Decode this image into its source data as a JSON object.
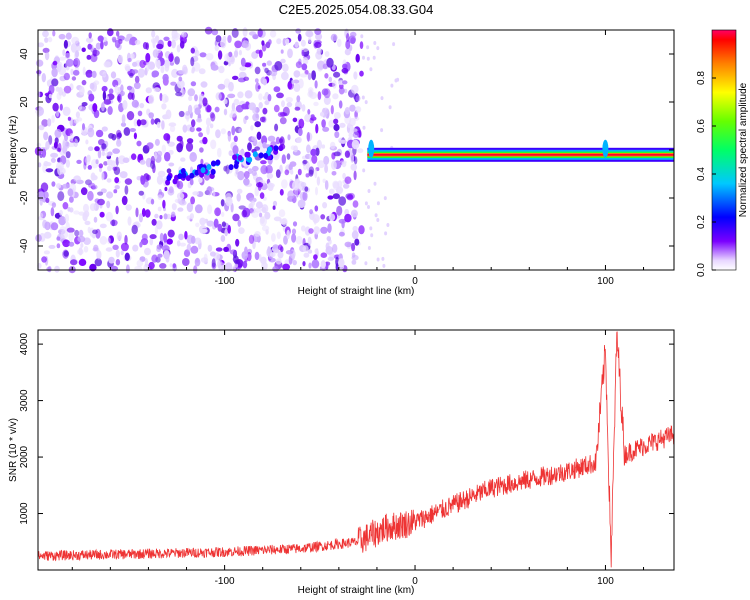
{
  "title": "C2E5.2025.054.08.33.G04",
  "chart_data": [
    {
      "type": "heatmap",
      "xlabel": "Height of straight line (km)",
      "ylabel": "Frequency (Hz)",
      "xlim": [
        -198,
        136
      ],
      "ylim": [
        -50,
        50
      ],
      "x_ticks": [
        -100,
        0,
        100
      ],
      "x_tick_labels": [
        "-100",
        "0",
        "100"
      ],
      "y_ticks": [
        -40,
        -20,
        0,
        20,
        40
      ],
      "y_tick_labels": [
        "-40",
        "-20",
        "0",
        "20",
        "40"
      ],
      "colorbar": {
        "label": "Normalized spectral amplitude",
        "range": [
          0,
          1
        ],
        "ticks": [
          0.0,
          0.2,
          0.4,
          0.6,
          0.8
        ],
        "tick_labels": [
          "0.0",
          "0.2",
          "0.4",
          "0.6",
          "0.8"
        ]
      },
      "features": {
        "noise_region_x": [
          -198,
          -28
        ],
        "carrier_line": {
          "x": [
            -25,
            136
          ],
          "frequency": -2,
          "peak_amplitude": 0.95
        },
        "weak_trace": {
          "x": [
            -130,
            -70
          ],
          "frequency": [
            -12,
            0
          ]
        }
      }
    },
    {
      "type": "line",
      "xlabel": "Height of straight line (km)",
      "ylabel": "SNR (10 * v/v)",
      "xlim": [
        -198,
        136
      ],
      "ylim": [
        0,
        4250
      ],
      "x_ticks": [
        -100,
        0,
        100
      ],
      "x_tick_labels": [
        "-100",
        "0",
        "100"
      ],
      "y_ticks": [
        1000,
        2000,
        3000,
        4000
      ],
      "y_tick_labels": [
        "1000",
        "2000",
        "3000",
        "4000"
      ],
      "color": "#ee3333",
      "x": [
        -198,
        -150,
        -100,
        -60,
        -30,
        -15,
        0,
        20,
        40,
        60,
        80,
        95,
        100,
        103,
        106,
        110,
        120,
        136
      ],
      "values": [
        250,
        280,
        320,
        380,
        500,
        750,
        850,
        1150,
        1450,
        1600,
        1750,
        1900,
        3900,
        200,
        4200,
        2050,
        2200,
        2400
      ]
    }
  ]
}
